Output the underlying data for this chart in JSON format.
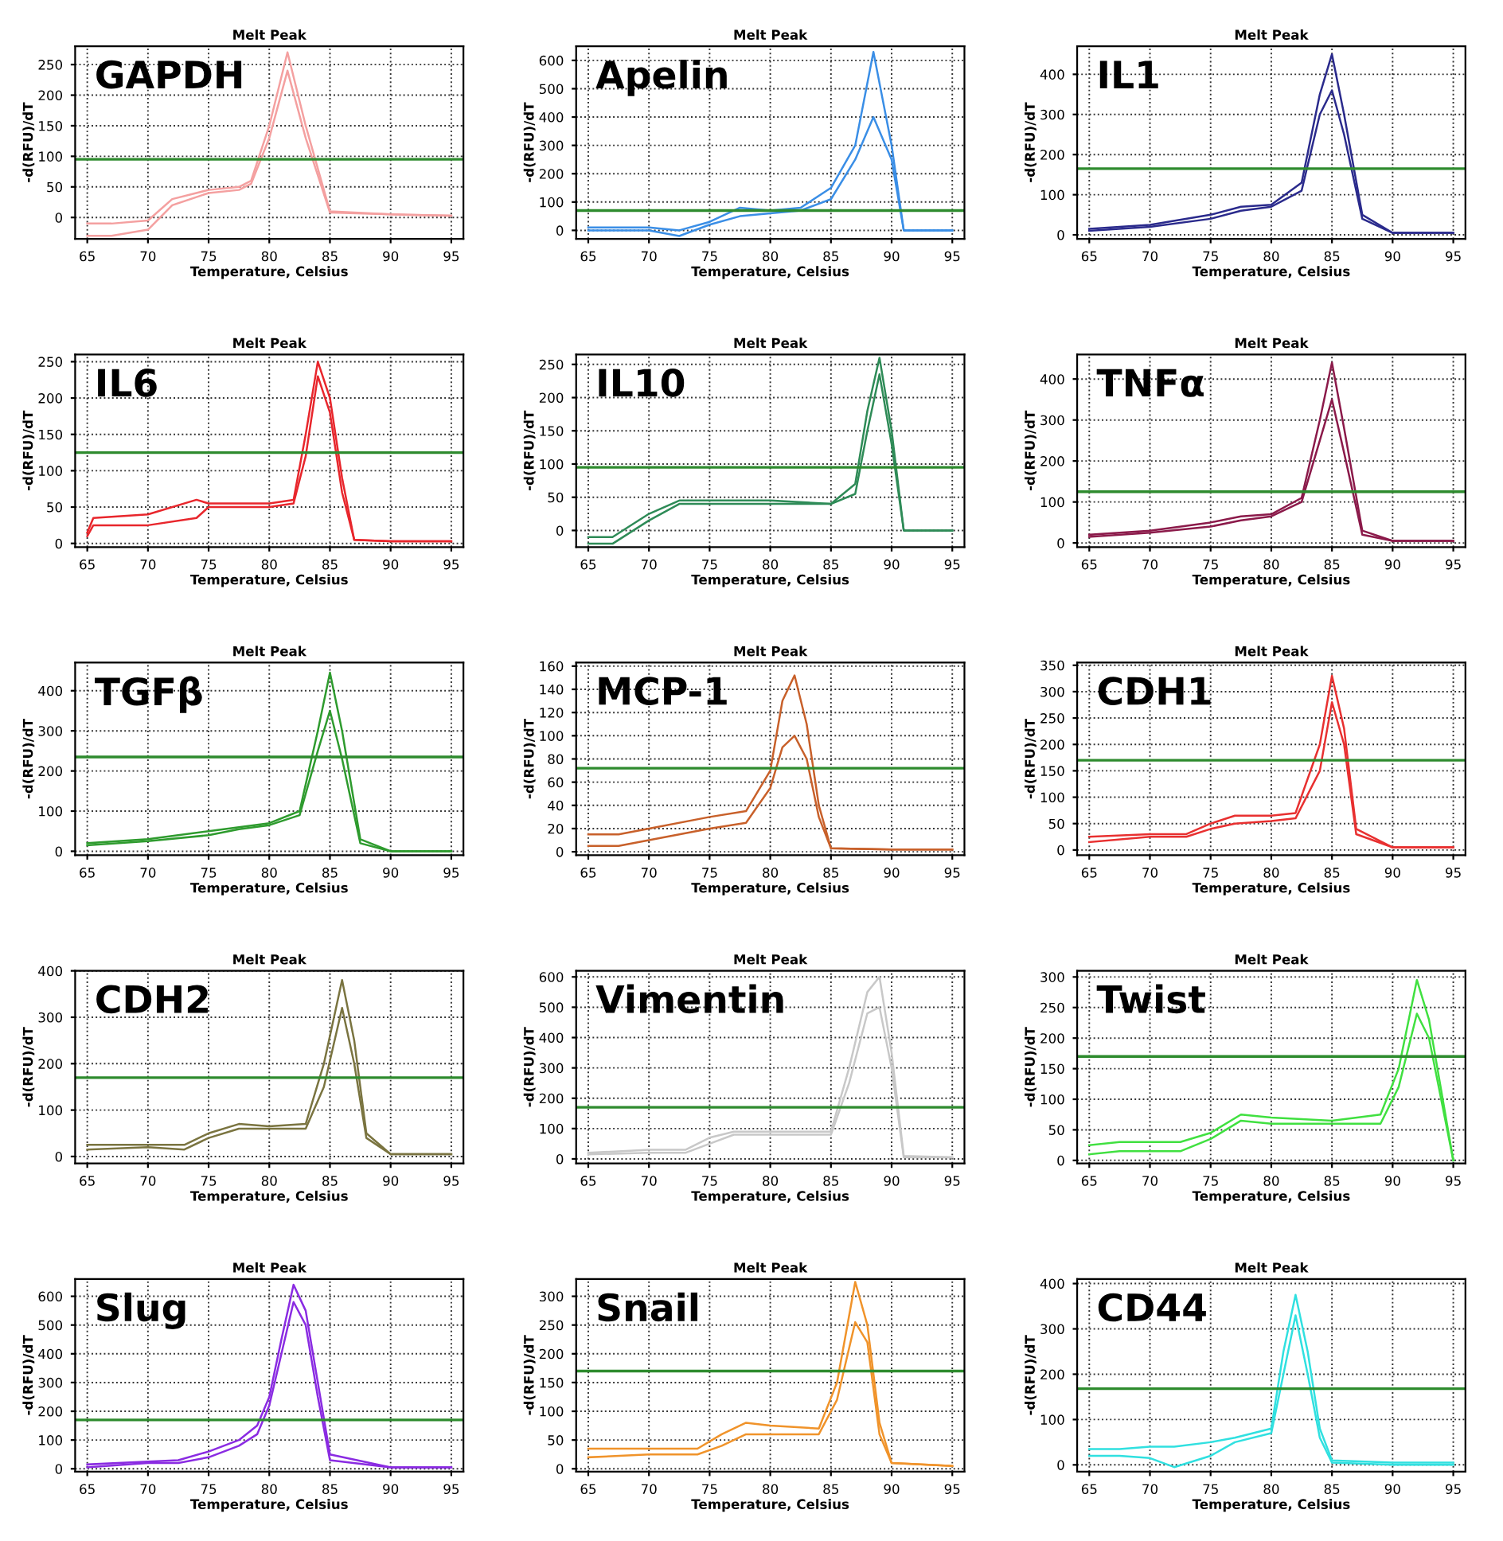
{
  "chart_data": [
    {
      "type": "line",
      "title": "Melt Peak",
      "xlabel": "Temperature, Celsius",
      "ylabel": "-d(RFU)/dT",
      "annotations": [
        "GAPDH"
      ],
      "grid": true,
      "xlim": [
        64,
        96
      ],
      "xticks": [
        65,
        70,
        75,
        80,
        85,
        90,
        95
      ],
      "ylim": [
        -35,
        280
      ],
      "yticks": [
        0,
        50,
        100,
        150,
        200,
        250
      ],
      "ref_lines": [
        {
          "axis": "y",
          "value": 95,
          "color": "#2e8b2e"
        }
      ],
      "x": [
        65,
        67,
        70,
        72,
        75,
        77.5,
        78.5,
        80,
        81.5,
        83,
        85,
        90,
        95
      ],
      "series": [
        {
          "color": "#f4a0a0",
          "values": [
            -10,
            -10,
            -5,
            30,
            45,
            50,
            60,
            150,
            270,
            150,
            10,
            5,
            3
          ]
        },
        {
          "color": "#f4a0a0",
          "values": [
            -30,
            -30,
            -20,
            20,
            40,
            45,
            55,
            130,
            240,
            130,
            8,
            5,
            3
          ]
        }
      ]
    },
    {
      "type": "line",
      "title": "Melt Peak",
      "xlabel": "Temperature, Celsius",
      "ylabel": "-d(RFU)/dT",
      "annotations": [
        "Apelin"
      ],
      "grid": true,
      "xlim": [
        64,
        96
      ],
      "xticks": [
        65,
        70,
        75,
        80,
        85,
        90,
        95
      ],
      "ylim": [
        -30,
        650
      ],
      "yticks": [
        0,
        100,
        200,
        300,
        400,
        500,
        600
      ],
      "ref_lines": [
        {
          "axis": "y",
          "value": 70,
          "color": "#2e8b2e"
        }
      ],
      "x": [
        65,
        70,
        72.5,
        75,
        77.5,
        80,
        82.5,
        85,
        87,
        88.5,
        90,
        91,
        95
      ],
      "series": [
        {
          "color": "#3a8ee6",
          "values": [
            10,
            10,
            0,
            30,
            80,
            70,
            80,
            150,
            300,
            630,
            300,
            0,
            0
          ]
        },
        {
          "color": "#3a8ee6",
          "values": [
            0,
            0,
            -20,
            20,
            50,
            60,
            70,
            110,
            250,
            400,
            250,
            0,
            0
          ]
        }
      ]
    },
    {
      "type": "line",
      "title": "Melt Peak",
      "xlabel": "Temperature, Celsius",
      "ylabel": "-d(RFU)/dT",
      "annotations": [
        "IL1"
      ],
      "grid": true,
      "xlim": [
        64,
        96
      ],
      "xticks": [
        65,
        70,
        75,
        80,
        85,
        90,
        95
      ],
      "ylim": [
        -10,
        470
      ],
      "yticks": [
        0,
        100,
        200,
        300,
        400
      ],
      "ref_lines": [
        {
          "axis": "y",
          "value": 165,
          "color": "#2e8b2e"
        }
      ],
      "x": [
        65,
        70,
        75,
        77.5,
        80,
        82.5,
        84,
        85,
        86,
        87.5,
        90,
        95
      ],
      "series": [
        {
          "color": "#2a2a8c",
          "values": [
            15,
            25,
            50,
            70,
            75,
            130,
            350,
            450,
            300,
            50,
            5,
            5
          ]
        },
        {
          "color": "#2a2a8c",
          "values": [
            10,
            20,
            40,
            60,
            70,
            110,
            300,
            360,
            250,
            40,
            5,
            5
          ]
        }
      ]
    },
    {
      "type": "line",
      "title": "Melt Peak",
      "xlabel": "Temperature, Celsius",
      "ylabel": "-d(RFU)/dT",
      "annotations": [
        "IL6"
      ],
      "grid": true,
      "xlim": [
        64,
        96
      ],
      "xticks": [
        65,
        70,
        75,
        80,
        85,
        90,
        95
      ],
      "ylim": [
        -5,
        260
      ],
      "yticks": [
        0,
        50,
        100,
        150,
        200,
        250
      ],
      "ref_lines": [
        {
          "axis": "y",
          "value": 125,
          "color": "#2e8b2e"
        }
      ],
      "x": [
        65,
        65.5,
        70,
        74,
        75,
        80,
        82,
        83,
        84,
        85,
        86,
        87,
        90,
        95
      ],
      "series": [
        {
          "color": "#e8262c",
          "values": [
            15,
            35,
            40,
            60,
            55,
            55,
            60,
            150,
            250,
            200,
            90,
            5,
            3,
            3
          ]
        },
        {
          "color": "#e8262c",
          "values": [
            10,
            25,
            25,
            35,
            50,
            50,
            55,
            120,
            230,
            180,
            70,
            5,
            3,
            3
          ]
        }
      ]
    },
    {
      "type": "line",
      "title": "Melt Peak",
      "xlabel": "Temperature, Celsius",
      "ylabel": "-d(RFU)/dT",
      "annotations": [
        "IL10"
      ],
      "grid": true,
      "xlim": [
        64,
        96
      ],
      "xticks": [
        65,
        70,
        75,
        80,
        85,
        90,
        95
      ],
      "ylim": [
        -25,
        265
      ],
      "yticks": [
        0,
        50,
        100,
        150,
        200,
        250
      ],
      "ref_lines": [
        {
          "axis": "y",
          "value": 95,
          "color": "#2e8b2e"
        }
      ],
      "x": [
        65,
        67,
        70,
        72.5,
        75,
        80,
        85,
        87,
        88,
        89,
        90,
        91,
        95
      ],
      "series": [
        {
          "color": "#2e8b57",
          "values": [
            -10,
            -10,
            25,
            45,
            45,
            45,
            40,
            70,
            180,
            260,
            150,
            0,
            0
          ]
        },
        {
          "color": "#2e8b57",
          "values": [
            -20,
            -20,
            15,
            40,
            40,
            40,
            40,
            55,
            150,
            235,
            130,
            0,
            0
          ]
        }
      ]
    },
    {
      "type": "line",
      "title": "Melt Peak",
      "xlabel": "Temperature, Celsius",
      "ylabel": "-d(RFU)/dT",
      "annotations": [
        "TNFα"
      ],
      "grid": true,
      "xlim": [
        64,
        96
      ],
      "xticks": [
        65,
        70,
        75,
        80,
        85,
        90,
        95
      ],
      "ylim": [
        -10,
        460
      ],
      "yticks": [
        0,
        100,
        200,
        300,
        400
      ],
      "ref_lines": [
        {
          "axis": "y",
          "value": 125,
          "color": "#2e8b2e"
        }
      ],
      "x": [
        65,
        70,
        75,
        77.5,
        80,
        82.5,
        84,
        85,
        86,
        87.5,
        90,
        95
      ],
      "series": [
        {
          "color": "#8b1a4a",
          "values": [
            20,
            30,
            50,
            65,
            70,
            110,
            300,
            440,
            280,
            30,
            5,
            5
          ]
        },
        {
          "color": "#8b1a4a",
          "values": [
            15,
            25,
            40,
            55,
            65,
            100,
            250,
            350,
            220,
            20,
            5,
            5
          ]
        }
      ]
    },
    {
      "type": "line",
      "title": "Melt Peak",
      "xlabel": "Temperature, Celsius",
      "ylabel": "-d(RFU)/dT",
      "annotations": [
        "TGFβ"
      ],
      "grid": true,
      "xlim": [
        64,
        96
      ],
      "xticks": [
        65,
        70,
        75,
        80,
        85,
        90,
        95
      ],
      "ylim": [
        -10,
        470
      ],
      "yticks": [
        0,
        100,
        200,
        300,
        400
      ],
      "ref_lines": [
        {
          "axis": "y",
          "value": 235,
          "color": "#2e8b2e"
        }
      ],
      "x": [
        65,
        70,
        75,
        77.5,
        80,
        82.5,
        84,
        85,
        86,
        87.5,
        90,
        95
      ],
      "series": [
        {
          "color": "#2e9b2e",
          "values": [
            20,
            30,
            50,
            60,
            70,
            100,
            300,
            445,
            300,
            30,
            0,
            0
          ]
        },
        {
          "color": "#2e9b2e",
          "values": [
            15,
            25,
            40,
            55,
            65,
            90,
            250,
            350,
            230,
            20,
            0,
            0
          ]
        }
      ]
    },
    {
      "type": "line",
      "title": "Melt Peak",
      "xlabel": "Temperature, Celsius",
      "ylabel": "-d(RFU)/dT",
      "annotations": [
        "MCP-1"
      ],
      "grid": true,
      "xlim": [
        64,
        96
      ],
      "xticks": [
        65,
        70,
        75,
        80,
        85,
        90,
        95
      ],
      "ylim": [
        -3,
        163
      ],
      "yticks": [
        0,
        20,
        40,
        60,
        80,
        100,
        120,
        140,
        160
      ],
      "ref_lines": [
        {
          "axis": "y",
          "value": 72,
          "color": "#2e8b2e"
        }
      ],
      "x": [
        65,
        67.5,
        70,
        75,
        78,
        80,
        81,
        82,
        83,
        84,
        85,
        90,
        95
      ],
      "series": [
        {
          "color": "#c8602a",
          "values": [
            15,
            15,
            20,
            30,
            35,
            70,
            130,
            152,
            110,
            40,
            3,
            2,
            2
          ]
        },
        {
          "color": "#c8602a",
          "values": [
            5,
            5,
            10,
            20,
            25,
            55,
            90,
            100,
            80,
            30,
            3,
            2,
            2
          ]
        }
      ]
    },
    {
      "type": "line",
      "title": "Melt Peak",
      "xlabel": "Temperature, Celsius",
      "ylabel": "-d(RFU)/dT",
      "annotations": [
        "CDH1"
      ],
      "grid": true,
      "xlim": [
        64,
        96
      ],
      "xticks": [
        65,
        70,
        75,
        80,
        85,
        90,
        95
      ],
      "ylim": [
        -10,
        355
      ],
      "yticks": [
        0,
        50,
        100,
        150,
        200,
        250,
        300,
        350
      ],
      "ref_lines": [
        {
          "axis": "y",
          "value": 170,
          "color": "#2e8b2e"
        }
      ],
      "x": [
        65,
        70,
        73,
        75,
        77,
        80,
        82,
        84,
        85,
        86,
        87,
        90,
        95
      ],
      "series": [
        {
          "color": "#e83030",
          "values": [
            25,
            30,
            30,
            50,
            65,
            65,
            70,
            200,
            330,
            230,
            40,
            5,
            5
          ]
        },
        {
          "color": "#e83030",
          "values": [
            15,
            25,
            25,
            40,
            50,
            55,
            60,
            150,
            280,
            200,
            30,
            5,
            5
          ]
        }
      ]
    },
    {
      "type": "line",
      "title": "Melt Peak",
      "xlabel": "Temperature, Celsius",
      "ylabel": "-d(RFU)/dT",
      "annotations": [
        "CDH2"
      ],
      "grid": true,
      "xlim": [
        64,
        96
      ],
      "xticks": [
        65,
        70,
        75,
        80,
        85,
        90,
        95
      ],
      "ylim": [
        -15,
        400
      ],
      "yticks": [
        0,
        100,
        200,
        300,
        400
      ],
      "ref_lines": [
        {
          "axis": "y",
          "value": 170,
          "color": "#2e8b2e"
        }
      ],
      "x": [
        65,
        70,
        73,
        75,
        77.5,
        80,
        83,
        84.5,
        86,
        87,
        88,
        90,
        95
      ],
      "series": [
        {
          "color": "#7a7440",
          "values": [
            25,
            25,
            25,
            50,
            70,
            65,
            70,
            200,
            380,
            250,
            50,
            5,
            5
          ]
        },
        {
          "color": "#7a7440",
          "values": [
            15,
            20,
            15,
            40,
            60,
            60,
            60,
            150,
            320,
            200,
            40,
            5,
            5
          ]
        }
      ]
    },
    {
      "type": "line",
      "title": "Melt Peak",
      "xlabel": "Temperature, Celsius",
      "ylabel": "-d(RFU)/dT",
      "annotations": [
        "Vimentin"
      ],
      "grid": true,
      "xlim": [
        64,
        96
      ],
      "xticks": [
        65,
        70,
        75,
        80,
        85,
        90,
        95
      ],
      "ylim": [
        -15,
        620
      ],
      "yticks": [
        0,
        100,
        200,
        300,
        400,
        500,
        600
      ],
      "ref_lines": [
        {
          "axis": "y",
          "value": 170,
          "color": "#2e8b2e"
        }
      ],
      "x": [
        65,
        70,
        73,
        75,
        77,
        80,
        85,
        86.5,
        88,
        89,
        90,
        91,
        95
      ],
      "series": [
        {
          "color": "#c8c8c8",
          "values": [
            20,
            30,
            30,
            70,
            90,
            90,
            90,
            300,
            550,
            600,
            350,
            10,
            5
          ]
        },
        {
          "color": "#c8c8c8",
          "values": [
            15,
            20,
            20,
            50,
            80,
            80,
            80,
            250,
            480,
            500,
            300,
            5,
            5
          ]
        }
      ]
    },
    {
      "type": "line",
      "title": "Melt Peak",
      "xlabel": "Temperature, Celsius",
      "ylabel": "-d(RFU)/dT",
      "annotations": [
        "Twist"
      ],
      "grid": true,
      "xlim": [
        64,
        96
      ],
      "xticks": [
        65,
        70,
        75,
        80,
        85,
        90,
        95
      ],
      "ylim": [
        -5,
        310
      ],
      "yticks": [
        0,
        50,
        100,
        150,
        200,
        250,
        300
      ],
      "ref_lines": [
        {
          "axis": "y",
          "value": 170,
          "color": "#2e8b2e"
        }
      ],
      "x": [
        65,
        67.5,
        70,
        72.5,
        75,
        77.5,
        80,
        85,
        89,
        90.5,
        92,
        93,
        95
      ],
      "series": [
        {
          "color": "#40e040",
          "values": [
            25,
            30,
            30,
            30,
            45,
            75,
            70,
            65,
            75,
            150,
            295,
            230,
            0
          ]
        },
        {
          "color": "#40e040",
          "values": [
            10,
            15,
            15,
            15,
            35,
            65,
            60,
            60,
            60,
            120,
            240,
            200,
            0
          ]
        }
      ]
    },
    {
      "type": "line",
      "title": "Melt Peak",
      "xlabel": "Temperature, Celsius",
      "ylabel": "-d(RFU)/dT",
      "annotations": [
        "Slug"
      ],
      "grid": true,
      "xlim": [
        64,
        96
      ],
      "xticks": [
        65,
        70,
        75,
        80,
        85,
        90,
        95
      ],
      "ylim": [
        -10,
        660
      ],
      "yticks": [
        0,
        100,
        200,
        300,
        400,
        500,
        600
      ],
      "ref_lines": [
        {
          "axis": "y",
          "value": 170,
          "color": "#2e8b2e"
        }
      ],
      "x": [
        65,
        70,
        72.5,
        75,
        77.5,
        79,
        80,
        81,
        82,
        83,
        84,
        85,
        90,
        95
      ],
      "series": [
        {
          "color": "#8a2be2",
          "values": [
            15,
            25,
            30,
            60,
            100,
            150,
            250,
            450,
            640,
            550,
            300,
            50,
            5,
            5
          ]
        },
        {
          "color": "#8a2be2",
          "values": [
            5,
            20,
            20,
            40,
            80,
            120,
            220,
            400,
            580,
            500,
            250,
            30,
            5,
            5
          ]
        }
      ]
    },
    {
      "type": "line",
      "title": "Melt Peak",
      "xlabel": "Temperature, Celsius",
      "ylabel": "-d(RFU)/dT",
      "annotations": [
        "Snail"
      ],
      "grid": true,
      "xlim": [
        64,
        96
      ],
      "xticks": [
        65,
        70,
        75,
        80,
        85,
        90,
        95
      ],
      "ylim": [
        -5,
        330
      ],
      "yticks": [
        0,
        50,
        100,
        150,
        200,
        250,
        300
      ],
      "ref_lines": [
        {
          "axis": "y",
          "value": 170,
          "color": "#2e8b2e"
        }
      ],
      "x": [
        65,
        70,
        74,
        76,
        78,
        80,
        84,
        85.5,
        87,
        88,
        89,
        90,
        95
      ],
      "series": [
        {
          "color": "#f0932a",
          "values": [
            35,
            35,
            35,
            60,
            80,
            75,
            70,
            150,
            325,
            250,
            80,
            10,
            5
          ]
        },
        {
          "color": "#f0932a",
          "values": [
            20,
            25,
            25,
            40,
            60,
            60,
            60,
            120,
            255,
            220,
            60,
            10,
            5
          ]
        }
      ]
    },
    {
      "type": "line",
      "title": "Melt Peak",
      "xlabel": "Temperature, Celsius",
      "ylabel": "-d(RFU)/dT",
      "annotations": [
        "CD44"
      ],
      "grid": true,
      "xlim": [
        64,
        96
      ],
      "xticks": [
        65,
        70,
        75,
        80,
        85,
        90,
        95
      ],
      "ylim": [
        -15,
        410
      ],
      "yticks": [
        0,
        100,
        200,
        300,
        400
      ],
      "ref_lines": [
        {
          "axis": "y",
          "value": 168,
          "color": "#2e8b2e"
        }
      ],
      "x": [
        65,
        67.5,
        70,
        72,
        75,
        77,
        80,
        81,
        82,
        83,
        84,
        85,
        90,
        95
      ],
      "series": [
        {
          "color": "#30e0e0",
          "values": [
            35,
            35,
            40,
            40,
            50,
            60,
            80,
            250,
            375,
            250,
            80,
            10,
            5,
            5
          ]
        },
        {
          "color": "#30e0e0",
          "values": [
            20,
            20,
            15,
            -5,
            20,
            50,
            70,
            200,
            330,
            200,
            60,
            5,
            0,
            0
          ]
        }
      ]
    }
  ]
}
